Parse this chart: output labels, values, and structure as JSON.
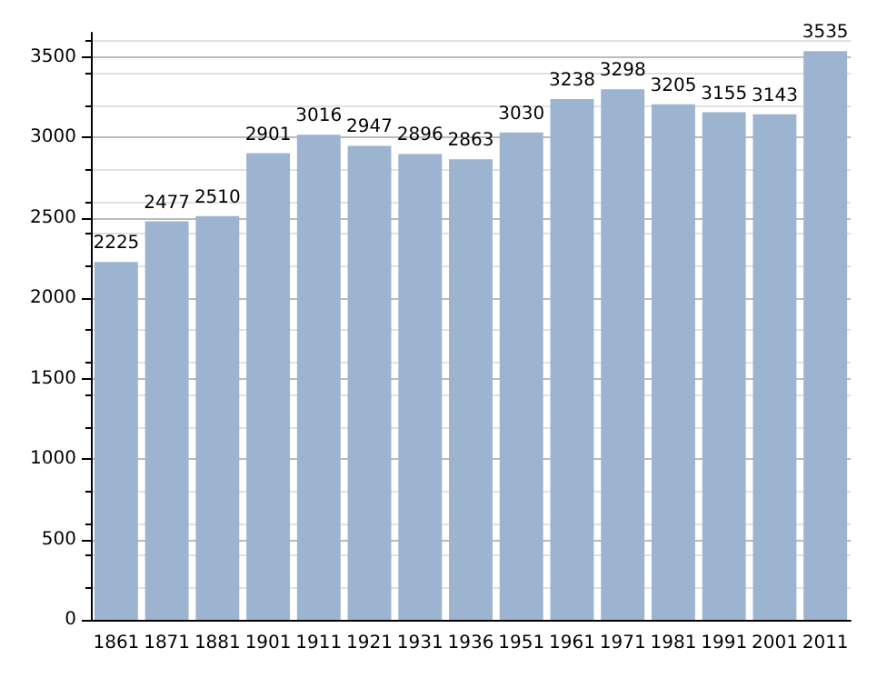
{
  "chart_data": {
    "type": "bar",
    "categories": [
      "1861",
      "1871",
      "1881",
      "1901",
      "1911",
      "1921",
      "1931",
      "1936",
      "1951",
      "1961",
      "1971",
      "1981",
      "1991",
      "2001",
      "2011"
    ],
    "values": [
      2225,
      2477,
      2510,
      2901,
      3016,
      2947,
      2896,
      2863,
      3030,
      3238,
      3298,
      3205,
      3155,
      3143,
      3535
    ],
    "color": "#9db4d1",
    "data_labels": true,
    "ylim": [
      0,
      3650
    ],
    "yticks": [
      0,
      500,
      1000,
      1500,
      2000,
      2500,
      3000,
      3500
    ],
    "grid": "y"
  }
}
